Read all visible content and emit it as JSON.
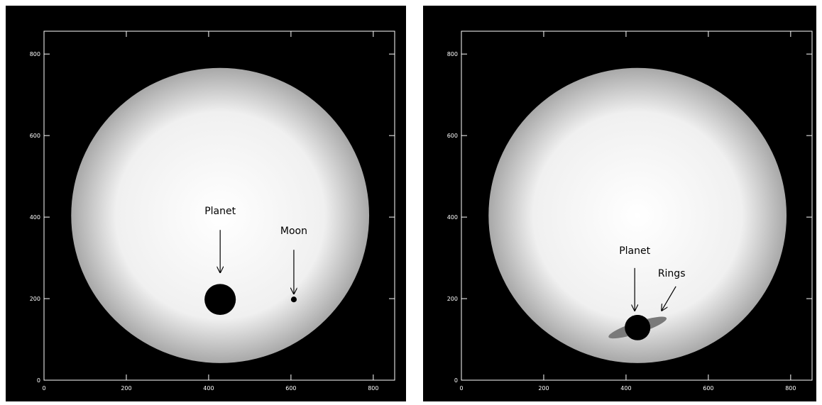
{
  "chart_data": [
    {
      "type": "image",
      "xlim": [
        0,
        852
      ],
      "ylim": [
        0,
        856
      ],
      "xticks": [
        0,
        200,
        400,
        600,
        800
      ],
      "yticks": [
        0,
        200,
        400,
        600,
        800
      ],
      "star": {
        "x": 428,
        "y": 404,
        "r": 362
      },
      "bodies": [
        {
          "name": "Planet",
          "x": 428,
          "y": 198,
          "r": 38
        },
        {
          "name": "Moon",
          "x": 607,
          "y": 198,
          "r": 7
        }
      ]
    },
    {
      "type": "image",
      "xlim": [
        0,
        852
      ],
      "ylim": [
        0,
        856
      ],
      "xticks": [
        0,
        200,
        400,
        600,
        800
      ],
      "yticks": [
        0,
        200,
        400,
        600,
        800
      ],
      "star": {
        "x": 428,
        "y": 404,
        "r": 362
      },
      "bodies": [
        {
          "name": "Planet",
          "x": 428,
          "y": 129,
          "r": 31
        },
        {
          "name": "Rings",
          "x": 428,
          "y": 129,
          "r": 74,
          "r2": 14,
          "angle": -18
        }
      ]
    }
  ]
}
